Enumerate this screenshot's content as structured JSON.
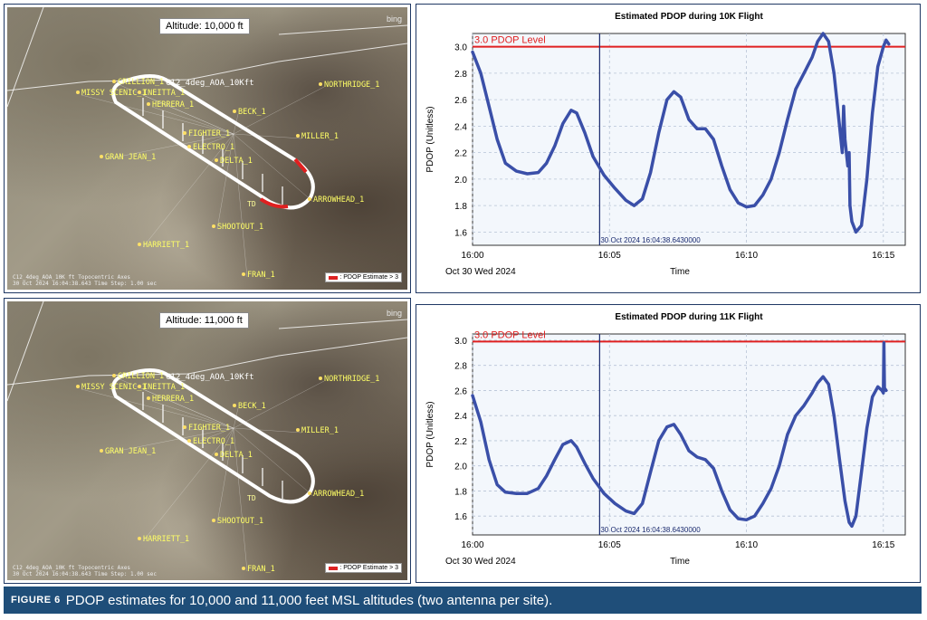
{
  "figure": {
    "number": "FIGURE 6",
    "caption": "PDOP estimates for 10,000 and 11,000 feet MSL altitudes (two antenna per site)."
  },
  "maps": [
    {
      "altitude_label": "Altitude: 10,000 ft",
      "bing": "bing",
      "legend_label": ": PDOP Estimate > 3",
      "caption_lines": [
        "C12_4deg_AOA_10K ft  Topocentric Axes",
        "30 Oct 2024 16:04:38.643    Time Step: 1.00 sec"
      ],
      "sites": [
        "CRILLION_1",
        "MISSY SCENIC_1",
        "INEITTA_1",
        "HERRERA_1",
        "NORTHRIDGE_1",
        "BECK_1",
        "MILLER_1",
        "FIGHTER_1",
        "ELECTRO_1",
        "DELTA_1",
        "GRAN JEAN_1",
        "ARROWHEAD_1",
        "SHOOTOUT_1",
        "HARRIETT_1",
        "FRAN_1"
      ],
      "aircraft_label": "C12_4deg_AOA_10Kft",
      "td_label": "TD",
      "red_segments": true
    },
    {
      "altitude_label": "Altitude: 11,000 ft",
      "bing": "bing",
      "legend_label": ": PDOP Estimate > 3",
      "caption_lines": [
        "C12_4deg_AOA_10K ft  Topocentric Axes",
        "30 Oct 2024 16:04:38.643    Time Step: 1.00 sec"
      ],
      "sites": [
        "CRILLION_1",
        "MISSY SCENIC_1",
        "INEITTA_1",
        "HERRERA_1",
        "NORTHRIDGE_1",
        "BECK_1",
        "MILLER_1",
        "FIGHTER_1",
        "ELECTRO_1",
        "DELTA_1",
        "GRAN JEAN_1",
        "ARROWHEAD_1",
        "SHOOTOUT_1",
        "HARRIETT_1",
        "FRAN_1"
      ],
      "aircraft_label": "C12_4deg_AOA_10Kft",
      "td_label": "TD",
      "red_segments": false
    }
  ],
  "colors": {
    "line": "#3a4fa8",
    "threshold": "#e02020",
    "cursor": "#1a2a6e",
    "caption_bg": "#1f4e79"
  },
  "chart_data": [
    {
      "type": "line",
      "title": "Estimated PDOP during 10K Flight",
      "xlabel": "Time",
      "ylabel": "PDOP  (Unitless)",
      "x_date_label": "Oct 30 Wed 2024",
      "xlim": [
        0,
        15.8
      ],
      "ylim": [
        1.5,
        3.1
      ],
      "yticks": [
        1.6,
        1.8,
        2.0,
        2.2,
        2.4,
        2.6,
        2.8,
        3.0
      ],
      "xticks": [
        {
          "label": "16:00",
          "v": 0
        },
        {
          "label": "16:05",
          "v": 5
        },
        {
          "label": "16:10",
          "v": 10
        },
        {
          "label": "16:15",
          "v": 15
        }
      ],
      "threshold": {
        "value": 3.0,
        "label": "3.0 PDOP Level"
      },
      "cursor": {
        "x": 4.64,
        "label": "30 Oct 2024 16:04:38.6430000"
      },
      "grid": true,
      "series": [
        {
          "points": [
            [
              0,
              2.96
            ],
            [
              0.3,
              2.8
            ],
            [
              0.6,
              2.55
            ],
            [
              0.9,
              2.3
            ],
            [
              1.2,
              2.12
            ],
            [
              1.6,
              2.06
            ],
            [
              2.0,
              2.04
            ],
            [
              2.4,
              2.05
            ],
            [
              2.7,
              2.12
            ],
            [
              3.0,
              2.25
            ],
            [
              3.3,
              2.42
            ],
            [
              3.6,
              2.52
            ],
            [
              3.8,
              2.5
            ],
            [
              4.1,
              2.35
            ],
            [
              4.4,
              2.17
            ],
            [
              4.8,
              2.03
            ],
            [
              5.2,
              1.93
            ],
            [
              5.6,
              1.84
            ],
            [
              5.9,
              1.8
            ],
            [
              6.2,
              1.85
            ],
            [
              6.5,
              2.05
            ],
            [
              6.8,
              2.35
            ],
            [
              7.1,
              2.6
            ],
            [
              7.35,
              2.66
            ],
            [
              7.6,
              2.62
            ],
            [
              7.9,
              2.45
            ],
            [
              8.2,
              2.38
            ],
            [
              8.5,
              2.38
            ],
            [
              8.8,
              2.3
            ],
            [
              9.1,
              2.1
            ],
            [
              9.4,
              1.92
            ],
            [
              9.7,
              1.82
            ],
            [
              10.0,
              1.79
            ],
            [
              10.3,
              1.8
            ],
            [
              10.6,
              1.88
            ],
            [
              10.9,
              2.0
            ],
            [
              11.2,
              2.2
            ],
            [
              11.5,
              2.45
            ],
            [
              11.8,
              2.68
            ],
            [
              12.1,
              2.8
            ],
            [
              12.4,
              2.92
            ],
            [
              12.6,
              3.04
            ],
            [
              12.8,
              3.1
            ],
            [
              13.0,
              3.04
            ],
            [
              13.2,
              2.8
            ],
            [
              13.4,
              2.4
            ],
            [
              13.5,
              2.2
            ],
            [
              13.55,
              2.55
            ],
            [
              13.6,
              2.3
            ],
            [
              13.7,
              2.1
            ],
            [
              13.75,
              2.2
            ],
            [
              13.78,
              1.8
            ],
            [
              13.85,
              1.68
            ],
            [
              14.0,
              1.6
            ],
            [
              14.2,
              1.65
            ],
            [
              14.4,
              2.0
            ],
            [
              14.6,
              2.5
            ],
            [
              14.8,
              2.85
            ],
            [
              15.0,
              3.0
            ],
            [
              15.1,
              3.05
            ],
            [
              15.2,
              3.02
            ]
          ]
        }
      ]
    },
    {
      "type": "line",
      "title": "Estimated PDOP during 11K Flight",
      "xlabel": "Time",
      "ylabel": "PDOP  (Unitless)",
      "x_date_label": "Oct 30 Wed 2024",
      "xlim": [
        0,
        15.8
      ],
      "ylim": [
        1.45,
        3.05
      ],
      "yticks": [
        1.6,
        1.8,
        2.0,
        2.2,
        2.4,
        2.6,
        2.8,
        3.0
      ],
      "xticks": [
        {
          "label": "16:00",
          "v": 0
        },
        {
          "label": "16:05",
          "v": 5
        },
        {
          "label": "16:10",
          "v": 10
        },
        {
          "label": "16:15",
          "v": 15
        }
      ],
      "threshold": {
        "value": 2.99,
        "label": "3.0 PDOP Level"
      },
      "cursor": {
        "x": 4.64,
        "label": "30 Oct 2024 16:04:38.6430000"
      },
      "grid": true,
      "series": [
        {
          "points": [
            [
              0,
              2.56
            ],
            [
              0.3,
              2.35
            ],
            [
              0.6,
              2.05
            ],
            [
              0.9,
              1.85
            ],
            [
              1.2,
              1.79
            ],
            [
              1.6,
              1.78
            ],
            [
              2.0,
              1.78
            ],
            [
              2.4,
              1.82
            ],
            [
              2.7,
              1.92
            ],
            [
              3.0,
              2.05
            ],
            [
              3.3,
              2.17
            ],
            [
              3.6,
              2.2
            ],
            [
              3.8,
              2.15
            ],
            [
              4.1,
              2.02
            ],
            [
              4.4,
              1.9
            ],
            [
              4.8,
              1.78
            ],
            [
              5.2,
              1.7
            ],
            [
              5.6,
              1.64
            ],
            [
              5.9,
              1.62
            ],
            [
              6.2,
              1.7
            ],
            [
              6.5,
              1.95
            ],
            [
              6.8,
              2.2
            ],
            [
              7.1,
              2.31
            ],
            [
              7.35,
              2.33
            ],
            [
              7.6,
              2.25
            ],
            [
              7.9,
              2.12
            ],
            [
              8.2,
              2.07
            ],
            [
              8.5,
              2.05
            ],
            [
              8.8,
              1.98
            ],
            [
              9.1,
              1.8
            ],
            [
              9.4,
              1.65
            ],
            [
              9.7,
              1.58
            ],
            [
              10.0,
              1.57
            ],
            [
              10.3,
              1.6
            ],
            [
              10.6,
              1.7
            ],
            [
              10.9,
              1.82
            ],
            [
              11.2,
              2.0
            ],
            [
              11.5,
              2.25
            ],
            [
              11.8,
              2.4
            ],
            [
              12.1,
              2.48
            ],
            [
              12.4,
              2.58
            ],
            [
              12.6,
              2.66
            ],
            [
              12.8,
              2.71
            ],
            [
              13.0,
              2.65
            ],
            [
              13.2,
              2.4
            ],
            [
              13.4,
              2.05
            ],
            [
              13.6,
              1.72
            ],
            [
              13.75,
              1.55
            ],
            [
              13.85,
              1.52
            ],
            [
              14.0,
              1.6
            ],
            [
              14.2,
              1.95
            ],
            [
              14.4,
              2.3
            ],
            [
              14.6,
              2.55
            ],
            [
              14.8,
              2.63
            ],
            [
              14.95,
              2.6
            ],
            [
              15.0,
              2.58
            ],
            [
              15.02,
              2.98
            ],
            [
              15.04,
              2.62
            ],
            [
              15.1,
              2.6
            ]
          ]
        }
      ]
    }
  ]
}
